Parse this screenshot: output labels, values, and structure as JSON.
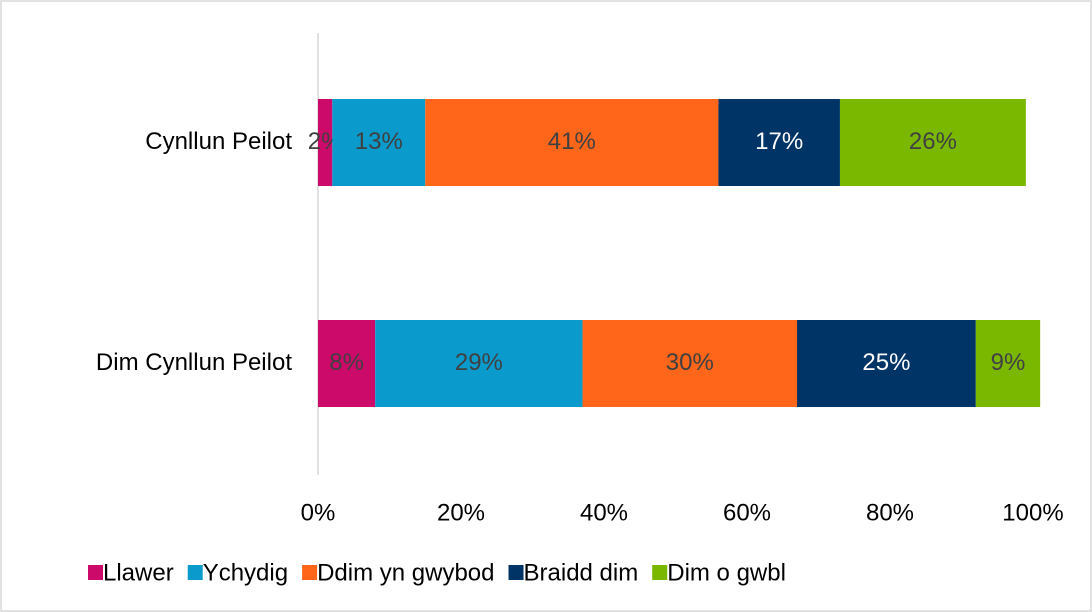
{
  "chart_data": {
    "type": "stacked_barh",
    "categories": [
      "Cynllun Peilot",
      "Dim Cynllun Peilot"
    ],
    "series": [
      {
        "name": "Llawer",
        "color": "#cc0a6a",
        "values": [
          2,
          8
        ],
        "value_labels": [
          "2%",
          "8%"
        ]
      },
      {
        "name": "Ychydig",
        "color": "#0a9acc",
        "values": [
          13,
          29
        ],
        "value_labels": [
          "13%",
          "29%"
        ]
      },
      {
        "name": "Ddim yn gwybod",
        "color": "#ff6619",
        "values": [
          41,
          30
        ],
        "value_labels": [
          "41%",
          "30%"
        ]
      },
      {
        "name": "Braidd dim",
        "color": "#003366",
        "values": [
          17,
          25
        ],
        "value_labels": [
          "17%",
          "25%"
        ]
      },
      {
        "name": "Dim o gwbl",
        "color": "#7ab800",
        "values": [
          26,
          9
        ],
        "value_labels": [
          "26%",
          "9%"
        ]
      }
    ],
    "xlim": [
      0,
      100
    ],
    "xticks": [
      {
        "value": 0,
        "label": "0%"
      },
      {
        "value": 20,
        "label": "20%"
      },
      {
        "value": 40,
        "label": "40%"
      },
      {
        "value": 60,
        "label": "60%"
      },
      {
        "value": 80,
        "label": "80%"
      },
      {
        "value": 100,
        "label": "100%"
      }
    ],
    "legend": "bottom"
  }
}
